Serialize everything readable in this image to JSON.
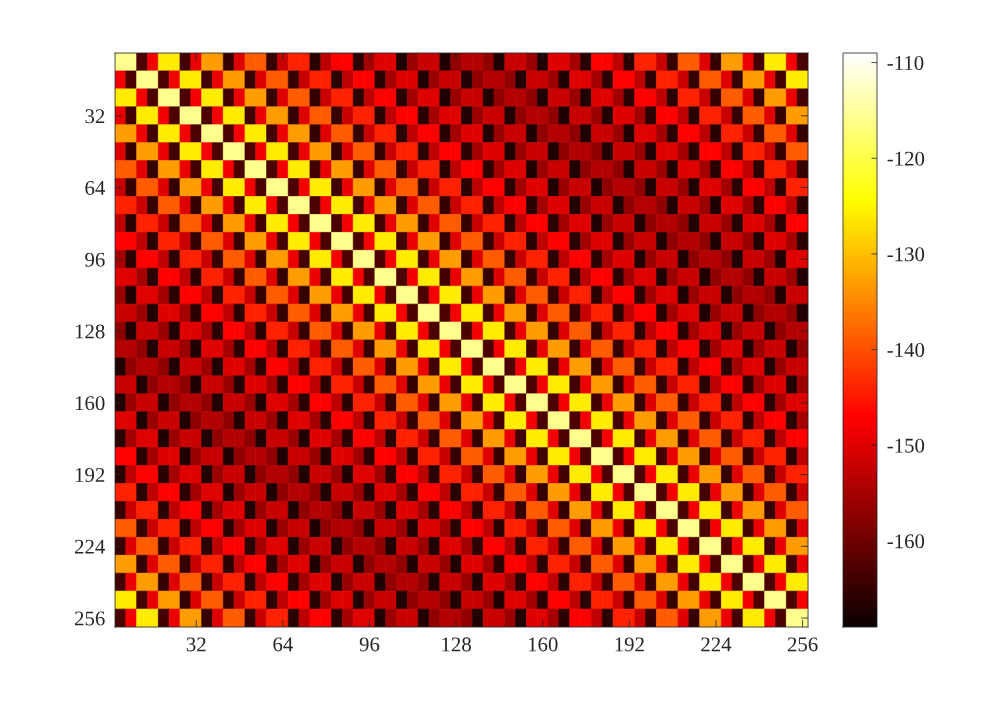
{
  "chart_data": {
    "type": "heatmap",
    "categories": [
      null,
      null,
      null,
      null,
      null,
      null,
      null,
      "32",
      null,
      null,
      null,
      null,
      null,
      null,
      null,
      "64",
      null,
      null,
      null,
      null,
      null,
      null,
      null,
      "96",
      null,
      null,
      null,
      null,
      null,
      null,
      null,
      "128",
      null,
      null,
      null,
      null,
      null,
      null,
      null,
      "160",
      null,
      null,
      null,
      null,
      null,
      null,
      null,
      "192",
      null,
      null,
      null,
      null,
      null,
      null,
      null,
      "224",
      null,
      null,
      null,
      null,
      null,
      null,
      null,
      "256"
    ],
    "y_categories": [
      null,
      null,
      null,
      "32",
      null,
      null,
      null,
      "64",
      null,
      null,
      null,
      "96",
      null,
      null,
      null,
      "128",
      null,
      null,
      null,
      "160",
      null,
      null,
      null,
      "192",
      null,
      null,
      null,
      "224",
      null,
      null,
      null,
      "256"
    ],
    "clim": [
      -169,
      -109
    ],
    "cticks": [
      -160,
      -150,
      -140,
      -130,
      -120,
      -110
    ],
    "cells": [
      [
        -116,
        -116,
        -163,
        -148,
        -126,
        -126,
        -164,
        -149,
        -133,
        -133,
        -165,
        -150,
        -139,
        -139,
        -165,
        -152,
        -144,
        -144,
        -166,
        -153,
        -147,
        -147,
        -166,
        -155,
        -150,
        -150,
        -167,
        -156,
        -152,
        -152,
        -167,
        -157,
        -154,
        -154,
        -157,
        -167,
        -152,
        -152,
        -156,
        -167,
        -150,
        -150,
        -155,
        -166,
        -147,
        -147,
        -153,
        -166,
        -144,
        -144,
        -152,
        -165,
        -139,
        -139,
        -150,
        -165,
        -133,
        -133,
        -149,
        -164,
        -126,
        -126,
        -148,
        -163
      ],
      [
        -148,
        -163,
        -116,
        -116,
        -163,
        -148,
        -126,
        -126,
        -164,
        -149,
        -133,
        -133,
        -165,
        -150,
        -139,
        -139,
        -165,
        -152,
        -144,
        -144,
        -166,
        -153,
        -147,
        -147,
        -166,
        -155,
        -150,
        -150,
        -167,
        -156,
        -152,
        -152,
        -167,
        -157,
        -154,
        -154,
        -157,
        -167,
        -152,
        -152,
        -156,
        -167,
        -150,
        -150,
        -155,
        -166,
        -147,
        -147,
        -153,
        -166,
        -144,
        -144,
        -152,
        -165,
        -139,
        -139,
        -150,
        -165,
        -133,
        -133,
        -149,
        -164,
        -126,
        -126
      ],
      [
        -126,
        -126,
        -148,
        -163,
        -116,
        -116,
        -163,
        -148,
        -126,
        -126,
        -164,
        -149,
        -133,
        -133,
        -165,
        -150,
        -139,
        -139,
        -165,
        -152,
        -144,
        -144,
        -166,
        -153,
        -147,
        -147,
        -166,
        -155,
        -150,
        -150,
        -167,
        -156,
        -152,
        -152,
        -167,
        -157,
        -154,
        -154,
        -157,
        -167,
        -152,
        -152,
        -156,
        -167,
        -150,
        -150,
        -155,
        -166,
        -147,
        -147,
        -153,
        -166,
        -144,
        -144,
        -152,
        -165,
        -139,
        -139,
        -150,
        -165,
        -133,
        -133,
        -149,
        -164
      ],
      [
        -149,
        -164,
        -126,
        -126,
        -148,
        -163,
        -116,
        -116,
        -163,
        -148,
        -126,
        -126,
        -164,
        -149,
        -133,
        -133,
        -165,
        -150,
        -139,
        -139,
        -165,
        -152,
        -144,
        -144,
        -166,
        -153,
        -147,
        -147,
        -166,
        -155,
        -150,
        -150,
        -167,
        -156,
        -152,
        -152,
        -167,
        -157,
        -154,
        -154,
        -157,
        -167,
        -152,
        -152,
        -156,
        -167,
        -150,
        -150,
        -155,
        -166,
        -147,
        -147,
        -153,
        -166,
        -144,
        -144,
        -152,
        -165,
        -139,
        -139,
        -150,
        -165,
        -133,
        -133
      ],
      [
        -133,
        -133,
        -149,
        -164,
        -126,
        -126,
        -148,
        -163,
        -116,
        -116,
        -163,
        -148,
        -126,
        -126,
        -164,
        -149,
        -133,
        -133,
        -165,
        -150,
        -139,
        -139,
        -165,
        -152,
        -144,
        -144,
        -166,
        -153,
        -147,
        -147,
        -166,
        -155,
        -150,
        -150,
        -167,
        -156,
        -152,
        -152,
        -167,
        -157,
        -154,
        -154,
        -157,
        -167,
        -152,
        -152,
        -156,
        -167,
        -150,
        -150,
        -155,
        -166,
        -147,
        -147,
        -153,
        -166,
        -144,
        -144,
        -152,
        -165,
        -139,
        -139,
        -150,
        -165
      ],
      [
        -150,
        -165,
        -133,
        -133,
        -149,
        -164,
        -126,
        -126,
        -148,
        -163,
        -116,
        -116,
        -163,
        -148,
        -126,
        -126,
        -164,
        -149,
        -133,
        -133,
        -165,
        -150,
        -139,
        -139,
        -165,
        -152,
        -144,
        -144,
        -166,
        -153,
        -147,
        -147,
        -166,
        -155,
        -150,
        -150,
        -167,
        -156,
        -152,
        -152,
        -167,
        -157,
        -154,
        -154,
        -157,
        -167,
        -152,
        -152,
        -156,
        -167,
        -150,
        -150,
        -155,
        -166,
        -147,
        -147,
        -153,
        -166,
        -144,
        -144,
        -152,
        -165,
        -139,
        -139
      ],
      [
        -139,
        -139,
        -150,
        -165,
        -133,
        -133,
        -149,
        -164,
        -126,
        -126,
        -148,
        -163,
        -116,
        -116,
        -163,
        -148,
        -126,
        -126,
        -164,
        -149,
        -133,
        -133,
        -165,
        -150,
        -139,
        -139,
        -165,
        -152,
        -144,
        -144,
        -166,
        -153,
        -147,
        -147,
        -166,
        -155,
        -150,
        -150,
        -167,
        -156,
        -152,
        -152,
        -167,
        -157,
        -154,
        -154,
        -157,
        -167,
        -152,
        -152,
        -156,
        -167,
        -150,
        -150,
        -155,
        -166,
        -147,
        -147,
        -153,
        -166,
        -144,
        -144,
        -152,
        -165
      ],
      [
        -152,
        -165,
        -139,
        -139,
        -150,
        -165,
        -133,
        -133,
        -149,
        -164,
        -126,
        -126,
        -148,
        -163,
        -116,
        -116,
        -163,
        -148,
        -126,
        -126,
        -164,
        -149,
        -133,
        -133,
        -165,
        -150,
        -139,
        -139,
        -165,
        -152,
        -144,
        -144,
        -166,
        -153,
        -147,
        -147,
        -166,
        -155,
        -150,
        -150,
        -167,
        -156,
        -152,
        -152,
        -167,
        -157,
        -154,
        -154,
        -157,
        -167,
        -152,
        -152,
        -156,
        -167,
        -150,
        -150,
        -155,
        -166,
        -147,
        -147,
        -153,
        -166,
        -144,
        -144
      ],
      [
        -144,
        -144,
        -152,
        -165,
        -139,
        -139,
        -150,
        -165,
        -133,
        -133,
        -149,
        -164,
        -126,
        -126,
        -148,
        -163,
        -116,
        -116,
        -163,
        -148,
        -126,
        -126,
        -164,
        -149,
        -133,
        -133,
        -165,
        -150,
        -139,
        -139,
        -165,
        -152,
        -144,
        -144,
        -166,
        -153,
        -147,
        -147,
        -166,
        -155,
        -150,
        -150,
        -167,
        -156,
        -152,
        -152,
        -167,
        -157,
        -154,
        -154,
        -157,
        -167,
        -152,
        -152,
        -156,
        -167,
        -150,
        -150,
        -155,
        -166,
        -147,
        -147,
        -153,
        -166
      ],
      [
        -153,
        -166,
        -144,
        -144,
        -152,
        -165,
        -139,
        -139,
        -150,
        -165,
        -133,
        -133,
        -149,
        -164,
        -126,
        -126,
        -148,
        -163,
        -116,
        -116,
        -163,
        -148,
        -126,
        -126,
        -164,
        -149,
        -133,
        -133,
        -165,
        -150,
        -139,
        -139,
        -165,
        -152,
        -144,
        -144,
        -166,
        -153,
        -147,
        -147,
        -166,
        -155,
        -150,
        -150,
        -167,
        -156,
        -152,
        -152,
        -167,
        -157,
        -154,
        -154,
        -157,
        -167,
        -152,
        -152,
        -156,
        -167,
        -150,
        -150,
        -155,
        -166,
        -147,
        -147
      ],
      [
        -147,
        -147,
        -153,
        -166,
        -144,
        -144,
        -152,
        -165,
        -139,
        -139,
        -150,
        -165,
        -133,
        -133,
        -149,
        -164,
        -126,
        -126,
        -148,
        -163,
        -116,
        -116,
        -163,
        -148,
        -126,
        -126,
        -164,
        -149,
        -133,
        -133,
        -165,
        -150,
        -139,
        -139,
        -165,
        -152,
        -144,
        -144,
        -166,
        -153,
        -147,
        -147,
        -166,
        -155,
        -150,
        -150,
        -167,
        -156,
        -152,
        -152,
        -167,
        -157,
        -154,
        -154,
        -157,
        -167,
        -152,
        -152,
        -156,
        -167,
        -150,
        -150,
        -155,
        -166
      ],
      [
        -155,
        -166,
        -147,
        -147,
        -153,
        -166,
        -144,
        -144,
        -152,
        -165,
        -139,
        -139,
        -150,
        -165,
        -133,
        -133,
        -149,
        -164,
        -126,
        -126,
        -148,
        -163,
        -116,
        -116,
        -163,
        -148,
        -126,
        -126,
        -164,
        -149,
        -133,
        -133,
        -165,
        -150,
        -139,
        -139,
        -165,
        -152,
        -144,
        -144,
        -166,
        -153,
        -147,
        -147,
        -166,
        -155,
        -150,
        -150,
        -167,
        -156,
        -152,
        -152,
        -167,
        -157,
        -154,
        -154,
        -157,
        -167,
        -152,
        -152,
        -156,
        -167,
        -150,
        -150
      ],
      [
        -150,
        -150,
        -155,
        -166,
        -147,
        -147,
        -153,
        -166,
        -144,
        -144,
        -152,
        -165,
        -139,
        -139,
        -150,
        -165,
        -133,
        -133,
        -149,
        -164,
        -126,
        -126,
        -148,
        -163,
        -116,
        -116,
        -163,
        -148,
        -126,
        -126,
        -164,
        -149,
        -133,
        -133,
        -165,
        -150,
        -139,
        -139,
        -165,
        -152,
        -144,
        -144,
        -166,
        -153,
        -147,
        -147,
        -166,
        -155,
        -150,
        -150,
        -167,
        -156,
        -152,
        -152,
        -167,
        -157,
        -154,
        -154,
        -157,
        -167,
        -152,
        -152,
        -156,
        -167
      ],
      [
        -156,
        -167,
        -150,
        -150,
        -155,
        -166,
        -147,
        -147,
        -153,
        -166,
        -144,
        -144,
        -152,
        -165,
        -139,
        -139,
        -150,
        -165,
        -133,
        -133,
        -149,
        -164,
        -126,
        -126,
        -148,
        -163,
        -116,
        -116,
        -163,
        -148,
        -126,
        -126,
        -164,
        -149,
        -133,
        -133,
        -165,
        -150,
        -139,
        -139,
        -165,
        -152,
        -144,
        -144,
        -166,
        -153,
        -147,
        -147,
        -166,
        -155,
        -150,
        -150,
        -167,
        -156,
        -152,
        -152,
        -167,
        -157,
        -154,
        -154,
        -157,
        -167,
        -152,
        -152
      ],
      [
        -152,
        -152,
        -156,
        -167,
        -150,
        -150,
        -155,
        -166,
        -147,
        -147,
        -153,
        -166,
        -144,
        -144,
        -152,
        -165,
        -139,
        -139,
        -150,
        -165,
        -133,
        -133,
        -149,
        -164,
        -126,
        -126,
        -148,
        -163,
        -116,
        -116,
        -163,
        -148,
        -126,
        -126,
        -164,
        -149,
        -133,
        -133,
        -165,
        -150,
        -139,
        -139,
        -165,
        -152,
        -144,
        -144,
        -166,
        -153,
        -147,
        -147,
        -166,
        -155,
        -150,
        -150,
        -167,
        -156,
        -152,
        -152,
        -167,
        -157,
        -154,
        -154,
        -157,
        -167
      ],
      [
        -157,
        -167,
        -152,
        -152,
        -156,
        -167,
        -150,
        -150,
        -155,
        -166,
        -147,
        -147,
        -153,
        -166,
        -144,
        -144,
        -152,
        -165,
        -139,
        -139,
        -150,
        -165,
        -133,
        -133,
        -149,
        -164,
        -126,
        -126,
        -148,
        -163,
        -116,
        -116,
        -163,
        -148,
        -126,
        -126,
        -164,
        -149,
        -133,
        -133,
        -165,
        -150,
        -139,
        -139,
        -165,
        -152,
        -144,
        -144,
        -166,
        -153,
        -147,
        -147,
        -166,
        -155,
        -150,
        -150,
        -167,
        -156,
        -152,
        -152,
        -167,
        -157,
        -154,
        -154
      ],
      [
        -154,
        -154,
        -157,
        -167,
        -152,
        -152,
        -156,
        -167,
        -150,
        -150,
        -155,
        -166,
        -147,
        -147,
        -153,
        -166,
        -144,
        -144,
        -152,
        -165,
        -139,
        -139,
        -150,
        -165,
        -133,
        -133,
        -149,
        -164,
        -126,
        -126,
        -148,
        -163,
        -116,
        -116,
        -163,
        -148,
        -126,
        -126,
        -164,
        -149,
        -133,
        -133,
        -165,
        -150,
        -139,
        -139,
        -165,
        -152,
        -144,
        -144,
        -166,
        -153,
        -147,
        -147,
        -166,
        -155,
        -150,
        -150,
        -167,
        -156,
        -152,
        -152,
        -167,
        -157
      ],
      [
        -167,
        -157,
        -154,
        -154,
        -157,
        -167,
        -152,
        -152,
        -156,
        -167,
        -150,
        -150,
        -155,
        -166,
        -147,
        -147,
        -153,
        -166,
        -144,
        -144,
        -152,
        -165,
        -139,
        -139,
        -150,
        -165,
        -133,
        -133,
        -149,
        -164,
        -126,
        -126,
        -148,
        -163,
        -116,
        -116,
        -163,
        -148,
        -126,
        -126,
        -164,
        -149,
        -133,
        -133,
        -165,
        -150,
        -139,
        -139,
        -165,
        -152,
        -144,
        -144,
        -166,
        -153,
        -147,
        -147,
        -166,
        -155,
        -150,
        -150,
        -167,
        -156,
        -152,
        -152
      ],
      [
        -152,
        -152,
        -167,
        -157,
        -154,
        -154,
        -157,
        -167,
        -152,
        -152,
        -156,
        -167,
        -150,
        -150,
        -155,
        -166,
        -147,
        -147,
        -153,
        -166,
        -144,
        -144,
        -152,
        -165,
        -139,
        -139,
        -150,
        -165,
        -133,
        -133,
        -149,
        -164,
        -126,
        -126,
        -148,
        -163,
        -116,
        -116,
        -163,
        -148,
        -126,
        -126,
        -164,
        -149,
        -133,
        -133,
        -165,
        -150,
        -139,
        -139,
        -165,
        -152,
        -144,
        -144,
        -166,
        -153,
        -147,
        -147,
        -166,
        -155,
        -150,
        -150,
        -167,
        -156
      ],
      [
        -167,
        -156,
        -152,
        -152,
        -167,
        -157,
        -154,
        -154,
        -157,
        -167,
        -152,
        -152,
        -156,
        -167,
        -150,
        -150,
        -155,
        -166,
        -147,
        -147,
        -153,
        -166,
        -144,
        -144,
        -152,
        -165,
        -139,
        -139,
        -150,
        -165,
        -133,
        -133,
        -149,
        -164,
        -126,
        -126,
        -148,
        -163,
        -116,
        -116,
        -163,
        -148,
        -126,
        -126,
        -164,
        -149,
        -133,
        -133,
        -165,
        -150,
        -139,
        -139,
        -165,
        -152,
        -144,
        -144,
        -166,
        -153,
        -147,
        -147,
        -166,
        -155,
        -150,
        -150
      ],
      [
        -150,
        -150,
        -167,
        -156,
        -152,
        -152,
        -167,
        -157,
        -154,
        -154,
        -157,
        -167,
        -152,
        -152,
        -156,
        -167,
        -150,
        -150,
        -155,
        -166,
        -147,
        -147,
        -153,
        -166,
        -144,
        -144,
        -152,
        -165,
        -139,
        -139,
        -150,
        -165,
        -133,
        -133,
        -149,
        -164,
        -126,
        -126,
        -148,
        -163,
        -116,
        -116,
        -163,
        -148,
        -126,
        -126,
        -164,
        -149,
        -133,
        -133,
        -165,
        -150,
        -139,
        -139,
        -165,
        -152,
        -144,
        -144,
        -166,
        -153,
        -147,
        -147,
        -166,
        -155
      ],
      [
        -166,
        -155,
        -150,
        -150,
        -167,
        -156,
        -152,
        -152,
        -167,
        -157,
        -154,
        -154,
        -157,
        -167,
        -152,
        -152,
        -156,
        -167,
        -150,
        -150,
        -155,
        -166,
        -147,
        -147,
        -153,
        -166,
        -144,
        -144,
        -152,
        -165,
        -139,
        -139,
        -150,
        -165,
        -133,
        -133,
        -149,
        -164,
        -126,
        -126,
        -148,
        -163,
        -116,
        -116,
        -163,
        -148,
        -126,
        -126,
        -164,
        -149,
        -133,
        -133,
        -165,
        -150,
        -139,
        -139,
        -165,
        -152,
        -144,
        -144,
        -166,
        -153,
        -147,
        -147
      ],
      [
        -147,
        -147,
        -166,
        -155,
        -150,
        -150,
        -167,
        -156,
        -152,
        -152,
        -167,
        -157,
        -154,
        -154,
        -157,
        -167,
        -152,
        -152,
        -156,
        -167,
        -150,
        -150,
        -155,
        -166,
        -147,
        -147,
        -153,
        -166,
        -144,
        -144,
        -152,
        -165,
        -139,
        -139,
        -150,
        -165,
        -133,
        -133,
        -149,
        -164,
        -126,
        -126,
        -148,
        -163,
        -116,
        -116,
        -163,
        -148,
        -126,
        -126,
        -164,
        -149,
        -133,
        -133,
        -165,
        -150,
        -139,
        -139,
        -165,
        -152,
        -144,
        -144,
        -166,
        -153
      ],
      [
        -166,
        -153,
        -147,
        -147,
        -166,
        -155,
        -150,
        -150,
        -167,
        -156,
        -152,
        -152,
        -167,
        -157,
        -154,
        -154,
        -157,
        -167,
        -152,
        -152,
        -156,
        -167,
        -150,
        -150,
        -155,
        -166,
        -147,
        -147,
        -153,
        -166,
        -144,
        -144,
        -152,
        -165,
        -139,
        -139,
        -150,
        -165,
        -133,
        -133,
        -149,
        -164,
        -126,
        -126,
        -148,
        -163,
        -116,
        -116,
        -163,
        -148,
        -126,
        -126,
        -164,
        -149,
        -133,
        -133,
        -165,
        -150,
        -139,
        -139,
        -165,
        -152,
        -144,
        -144
      ],
      [
        -144,
        -144,
        -166,
        -153,
        -147,
        -147,
        -166,
        -155,
        -150,
        -150,
        -167,
        -156,
        -152,
        -152,
        -167,
        -157,
        -154,
        -154,
        -157,
        -167,
        -152,
        -152,
        -156,
        -167,
        -150,
        -150,
        -155,
        -166,
        -147,
        -147,
        -153,
        -166,
        -144,
        -144,
        -152,
        -165,
        -139,
        -139,
        -150,
        -165,
        -133,
        -133,
        -149,
        -164,
        -126,
        -126,
        -148,
        -163,
        -116,
        -116,
        -163,
        -148,
        -126,
        -126,
        -164,
        -149,
        -133,
        -133,
        -165,
        -150,
        -139,
        -139,
        -165,
        -152
      ],
      [
        -165,
        -152,
        -144,
        -144,
        -166,
        -153,
        -147,
        -147,
        -166,
        -155,
        -150,
        -150,
        -167,
        -156,
        -152,
        -152,
        -167,
        -157,
        -154,
        -154,
        -157,
        -167,
        -152,
        -152,
        -156,
        -167,
        -150,
        -150,
        -155,
        -166,
        -147,
        -147,
        -153,
        -166,
        -144,
        -144,
        -152,
        -165,
        -139,
        -139,
        -150,
        -165,
        -133,
        -133,
        -149,
        -164,
        -126,
        -126,
        -148,
        -163,
        -116,
        -116,
        -163,
        -148,
        -126,
        -126,
        -164,
        -149,
        -133,
        -133,
        -165,
        -150,
        -139,
        -139
      ],
      [
        -139,
        -139,
        -165,
        -152,
        -144,
        -144,
        -166,
        -153,
        -147,
        -147,
        -166,
        -155,
        -150,
        -150,
        -167,
        -156,
        -152,
        -152,
        -167,
        -157,
        -154,
        -154,
        -157,
        -167,
        -152,
        -152,
        -156,
        -167,
        -150,
        -150,
        -155,
        -166,
        -147,
        -147,
        -153,
        -166,
        -144,
        -144,
        -152,
        -165,
        -139,
        -139,
        -150,
        -165,
        -133,
        -133,
        -149,
        -164,
        -126,
        -126,
        -148,
        -163,
        -116,
        -116,
        -163,
        -148,
        -126,
        -126,
        -164,
        -149,
        -133,
        -133,
        -165,
        -150
      ],
      [
        -165,
        -150,
        -139,
        -139,
        -165,
        -152,
        -144,
        -144,
        -166,
        -153,
        -147,
        -147,
        -166,
        -155,
        -150,
        -150,
        -167,
        -156,
        -152,
        -152,
        -167,
        -157,
        -154,
        -154,
        -157,
        -167,
        -152,
        -152,
        -156,
        -167,
        -150,
        -150,
        -155,
        -166,
        -147,
        -147,
        -153,
        -166,
        -144,
        -144,
        -152,
        -165,
        -139,
        -139,
        -150,
        -165,
        -133,
        -133,
        -149,
        -164,
        -126,
        -126,
        -148,
        -163,
        -116,
        -116,
        -163,
        -148,
        -126,
        -126,
        -164,
        -149,
        -133,
        -133
      ],
      [
        -133,
        -133,
        -165,
        -150,
        -139,
        -139,
        -165,
        -152,
        -144,
        -144,
        -166,
        -153,
        -147,
        -147,
        -166,
        -155,
        -150,
        -150,
        -167,
        -156,
        -152,
        -152,
        -167,
        -157,
        -154,
        -154,
        -157,
        -167,
        -152,
        -152,
        -156,
        -167,
        -150,
        -150,
        -155,
        -166,
        -147,
        -147,
        -153,
        -166,
        -144,
        -144,
        -152,
        -165,
        -139,
        -139,
        -150,
        -165,
        -133,
        -133,
        -149,
        -164,
        -126,
        -126,
        -148,
        -163,
        -116,
        -116,
        -163,
        -148,
        -126,
        -126,
        -164,
        -149
      ],
      [
        -164,
        -149,
        -133,
        -133,
        -165,
        -150,
        -139,
        -139,
        -165,
        -152,
        -144,
        -144,
        -166,
        -153,
        -147,
        -147,
        -166,
        -155,
        -150,
        -150,
        -167,
        -156,
        -152,
        -152,
        -167,
        -157,
        -154,
        -154,
        -157,
        -167,
        -152,
        -152,
        -156,
        -167,
        -150,
        -150,
        -155,
        -166,
        -147,
        -147,
        -153,
        -166,
        -144,
        -144,
        -152,
        -165,
        -139,
        -139,
        -150,
        -165,
        -133,
        -133,
        -149,
        -164,
        -126,
        -126,
        -148,
        -163,
        -116,
        -116,
        -163,
        -148,
        -126,
        -126
      ],
      [
        -126,
        -126,
        -164,
        -149,
        -133,
        -133,
        -165,
        -150,
        -139,
        -139,
        -165,
        -152,
        -144,
        -144,
        -166,
        -153,
        -147,
        -147,
        -166,
        -155,
        -150,
        -150,
        -167,
        -156,
        -152,
        -152,
        -167,
        -157,
        -154,
        -154,
        -157,
        -167,
        -152,
        -152,
        -156,
        -167,
        -150,
        -150,
        -155,
        -166,
        -147,
        -147,
        -153,
        -166,
        -144,
        -144,
        -152,
        -165,
        -139,
        -139,
        -150,
        -165,
        -133,
        -133,
        -149,
        -164,
        -126,
        -126,
        -148,
        -163,
        -116,
        -116,
        -163,
        -148
      ],
      [
        -163,
        -148,
        -126,
        -126,
        -164,
        -149,
        -133,
        -133,
        -165,
        -150,
        -139,
        -139,
        -165,
        -152,
        -144,
        -144,
        -166,
        -153,
        -147,
        -147,
        -166,
        -155,
        -150,
        -150,
        -167,
        -156,
        -152,
        -152,
        -167,
        -157,
        -154,
        -154,
        -157,
        -167,
        -152,
        -152,
        -156,
        -167,
        -150,
        -150,
        -155,
        -166,
        -147,
        -147,
        -153,
        -166,
        -144,
        -144,
        -152,
        -165,
        -139,
        -139,
        -150,
        -165,
        -133,
        -133,
        -149,
        -164,
        -126,
        -126,
        -148,
        -163,
        -116,
        -116
      ]
    ]
  }
}
